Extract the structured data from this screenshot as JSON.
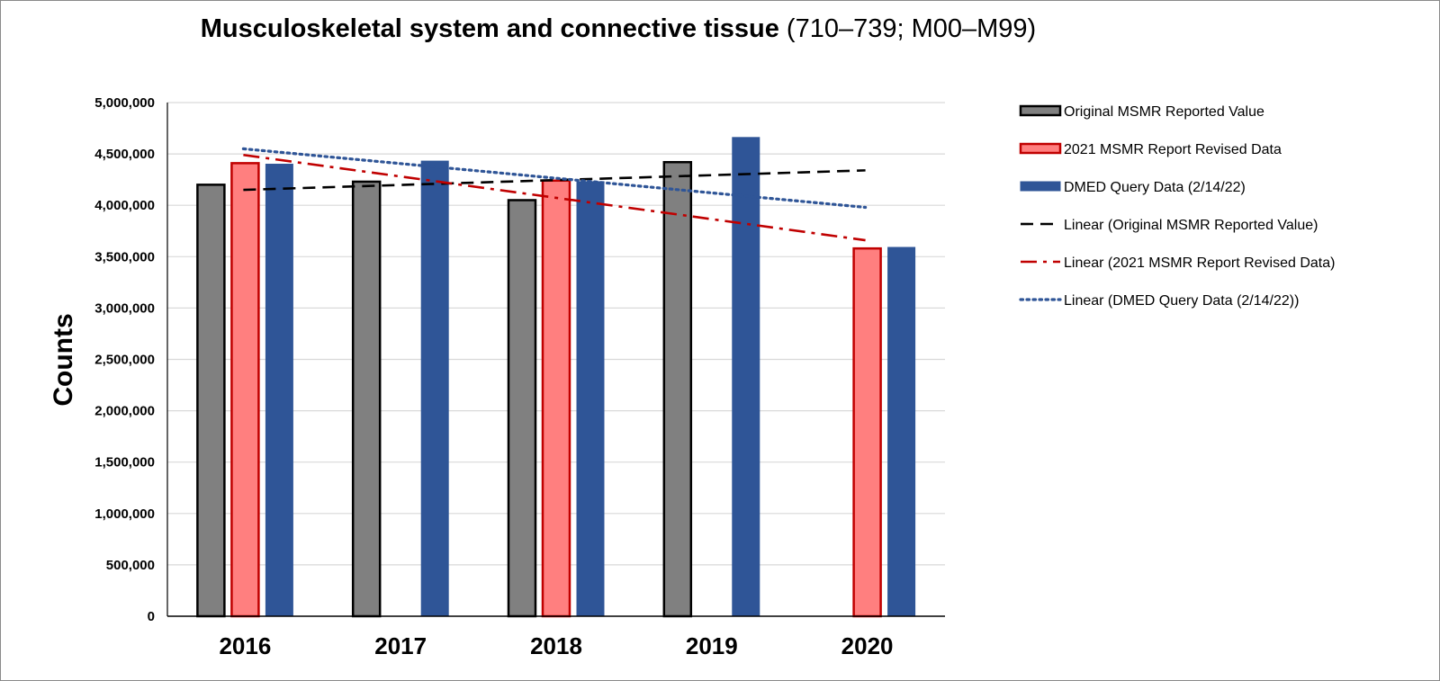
{
  "chart_data": {
    "type": "bar",
    "title_bold": "Musculoskeletal system and connective tissue",
    "title_light": "(710–739; M00–M99)",
    "xlabel": "",
    "ylabel": "Counts",
    "ylim": [
      0,
      5000000
    ],
    "yticks": [
      0,
      500000,
      1000000,
      1500000,
      2000000,
      2500000,
      3000000,
      3500000,
      4000000,
      4500000,
      5000000
    ],
    "ytick_labels": [
      "0",
      "500,000",
      "1,000,000",
      "1,500,000",
      "2,000,000",
      "2,500,000",
      "3,000,000",
      "3,500,000",
      "4,000,000",
      "4,500,000",
      "5,000,000"
    ],
    "grid": true,
    "legend_position": "right",
    "categories": [
      "2016",
      "2017",
      "2018",
      "2019",
      "2020"
    ],
    "series": [
      {
        "name": "Original MSMR Reported Value",
        "fill": "#808080",
        "stroke": "#000000",
        "values": [
          4200000,
          4230000,
          4050000,
          4420000,
          null
        ]
      },
      {
        "name": "2021 MSMR Report Revised Data",
        "fill": "#ff7f7f",
        "stroke": "#c00000",
        "values": [
          4410000,
          null,
          4240000,
          null,
          3580000
        ]
      },
      {
        "name": "DMED Query Data (2/14/22)",
        "fill": "#2f5597",
        "stroke": "#2f5597",
        "values": [
          4400000,
          4430000,
          4230000,
          4660000,
          3590000
        ]
      }
    ],
    "trendlines": [
      {
        "name": "Linear (Original MSMR Reported Value)",
        "color": "#000000",
        "style": "dashed",
        "start": 4150000,
        "end": 4340000
      },
      {
        "name": "Linear (2021 MSMR Report Revised Data)",
        "color": "#c00000",
        "style": "dashdot",
        "start": 4490000,
        "end": 3660000
      },
      {
        "name": "Linear (DMED Query Data (2/14/22))",
        "color": "#2f5597",
        "style": "dotted",
        "start": 4550000,
        "end": 3980000
      }
    ]
  }
}
